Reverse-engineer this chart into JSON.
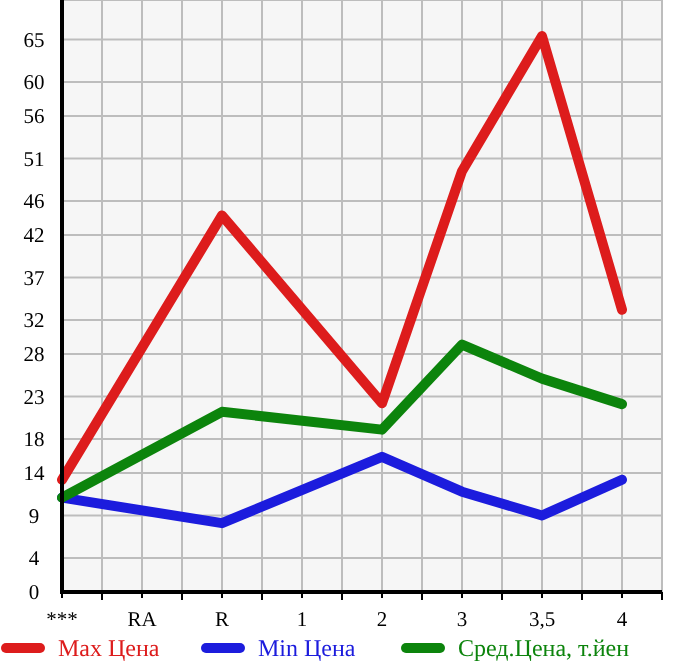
{
  "chart_data": {
    "type": "line",
    "categories": [
      "***",
      "RA",
      "R",
      "1",
      "2",
      "3",
      "3,5",
      "4"
    ],
    "series": [
      {
        "name": "Max Цена",
        "color": "#dd1c1c",
        "values": [
          13.2,
          null,
          44.3,
          null,
          22.2,
          49.5,
          65.4,
          33.2
        ]
      },
      {
        "name": "Min Цена",
        "color": "#1c1cdd",
        "values": [
          11.1,
          null,
          8.1,
          null,
          15.9,
          11.8,
          9.0,
          13.2
        ]
      },
      {
        "name": "Сред.Цена, т.йен",
        "color": "#0c840c",
        "values": [
          11.1,
          null,
          21.2,
          null,
          19.1,
          29.1,
          25.1,
          22.1
        ]
      }
    ],
    "ylim": [
      0,
      69.64
    ],
    "yticks": [
      0,
      4,
      9,
      14,
      18,
      23,
      28,
      32,
      37,
      42,
      46,
      51,
      56,
      60,
      65
    ],
    "grid": true,
    "legend": "bottom",
    "marker": "none",
    "line_style": "solid"
  }
}
